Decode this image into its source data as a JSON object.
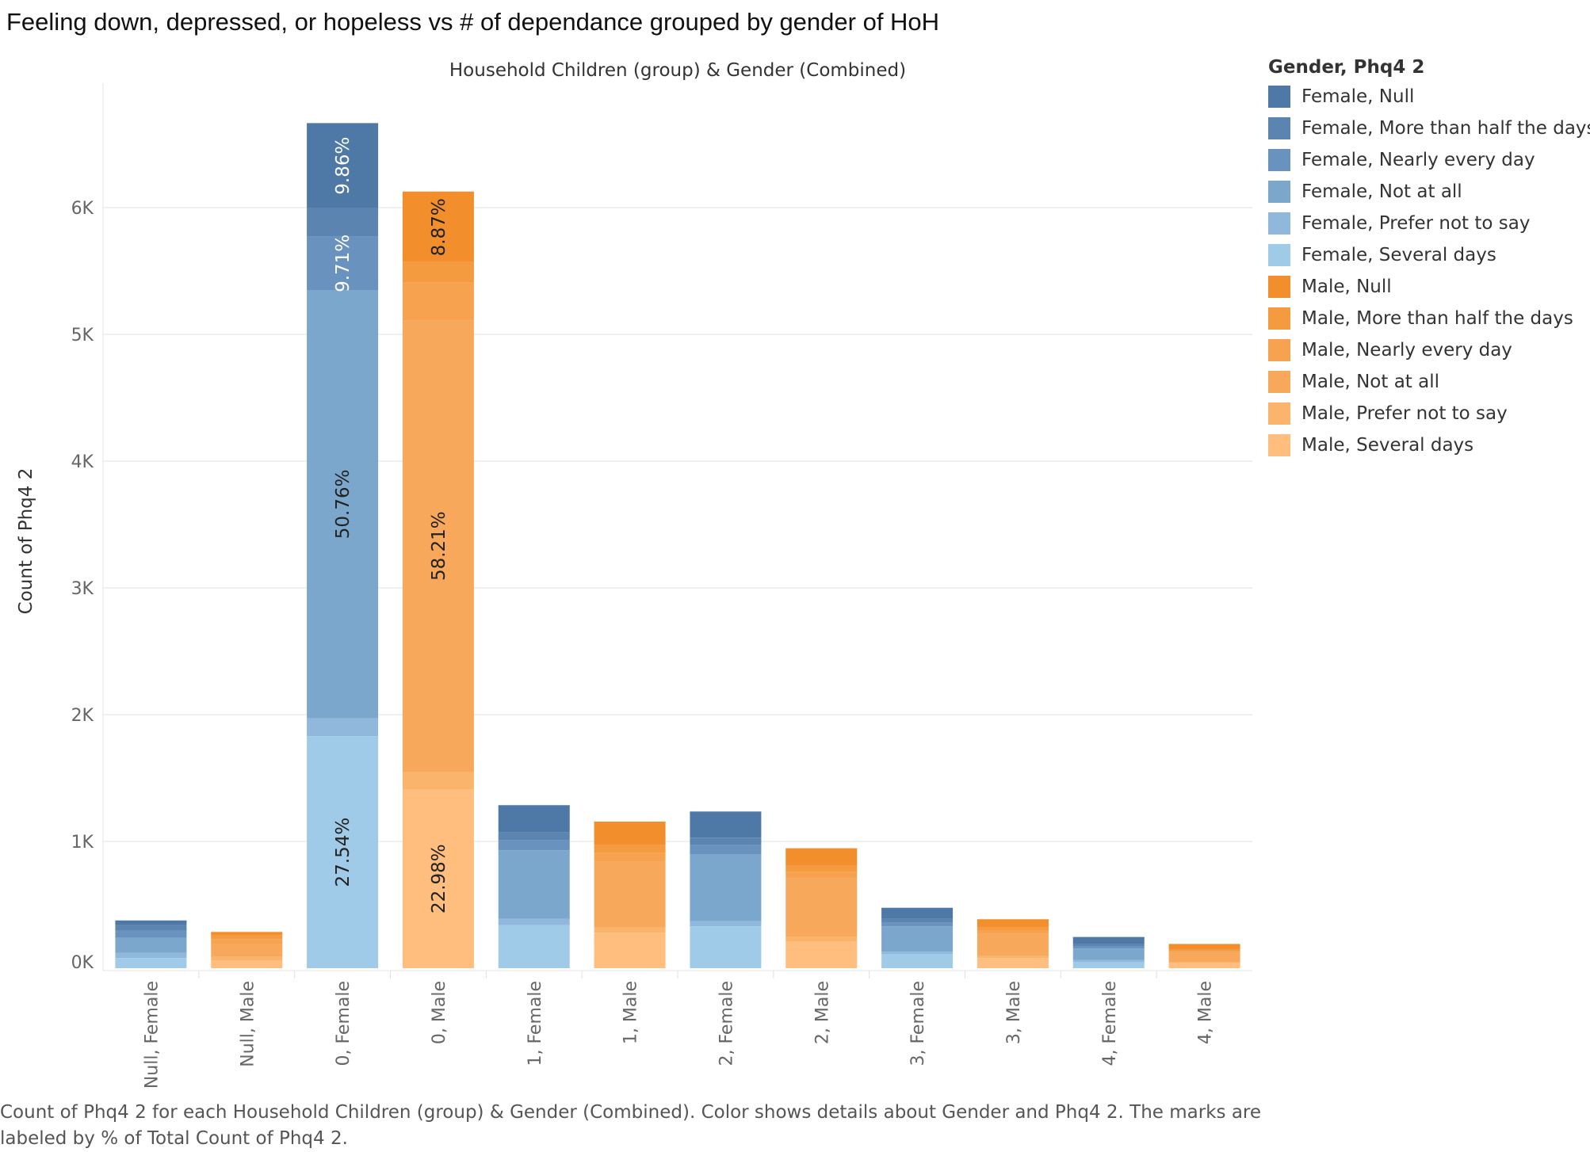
{
  "title": "Feeling down, depressed, or hopeless vs # of dependance grouped by gender of HoH",
  "caption": "Count of Phq4 2 for each Household Children (group) & Gender (Combined).  Color shows details about Gender and Phq4 2.  The marks are labeled by % of Total Count of Phq4 2.",
  "legend": {
    "title": "Gender, Phq4 2",
    "items": [
      {
        "label": "Female, Null",
        "color": "#4e79a7"
      },
      {
        "label": "Female, More than half the days",
        "color": "#5b84b1"
      },
      {
        "label": "Female, Nearly every day",
        "color": "#6a92bf"
      },
      {
        "label": "Female, Not at all",
        "color": "#7ba7cc"
      },
      {
        "label": "Female, Prefer not to say",
        "color": "#8fb8dc"
      },
      {
        "label": "Female, Several days",
        "color": "#a0cbe8"
      },
      {
        "label": "Male, Null",
        "color": "#f28e2b"
      },
      {
        "label": "Male, More than half the days",
        "color": "#f49a3f"
      },
      {
        "label": "Male, Nearly every day",
        "color": "#f6a24f"
      },
      {
        "label": "Male, Not at all",
        "color": "#f7a85b"
      },
      {
        "label": "Male, Prefer not to say",
        "color": "#fab46c"
      },
      {
        "label": "Male, Several days",
        "color": "#ffbe7d"
      }
    ]
  },
  "chart_data": {
    "type": "bar",
    "stacked": true,
    "title": "Feeling down, depressed, or hopeless vs # of dependance grouped by gender of HoH",
    "xlabel": "Household Children (group) & Gender (Combined)",
    "ylabel": "Count of Phq4 2",
    "ylim": [
      -100,
      7000
    ],
    "yticks": [
      {
        "value": 0,
        "label": "0K"
      },
      {
        "value": 1000,
        "label": "1K"
      },
      {
        "value": 2000,
        "label": "2K"
      },
      {
        "value": 3000,
        "label": "3K"
      },
      {
        "value": 4000,
        "label": "4K"
      },
      {
        "value": 5000,
        "label": "5K"
      },
      {
        "value": 6000,
        "label": "6K"
      }
    ],
    "grid": true,
    "legend_position": "right",
    "segment_order_bottom_to_top": [
      "Several days",
      "Prefer not to say",
      "Not at all",
      "Nearly every day",
      "More than half the days",
      "Null"
    ],
    "categories": [
      {
        "label": "Null, Female",
        "gender": "Female",
        "segments": [
          80,
          40,
          120,
          60,
          40,
          30
        ],
        "labels": [
          "",
          "",
          "",
          "",
          "",
          ""
        ]
      },
      {
        "label": "Null, Male",
        "gender": "Male",
        "segments": [
          60,
          30,
          100,
          40,
          30,
          20
        ],
        "labels": [
          "",
          "",
          "",
          "",
          "",
          ""
        ]
      },
      {
        "label": "0, Female",
        "gender": "Female",
        "segments": [
          1830,
          140,
          3380,
          420,
          230,
          660
        ],
        "labels": [
          "27.54%",
          "",
          "50.76%",
          "9.71%",
          "",
          "9.86%"
        ]
      },
      {
        "label": "0, Male",
        "gender": "Male",
        "segments": [
          1410,
          140,
          3560,
          300,
          160,
          550
        ],
        "labels": [
          "22.98%",
          "",
          "58.21%",
          "",
          "",
          "8.87%"
        ]
      },
      {
        "label": "1, Female",
        "gender": "Female",
        "segments": [
          340,
          50,
          540,
          80,
          60,
          210
        ],
        "labels": [
          "",
          "",
          "",
          "",
          "",
          ""
        ]
      },
      {
        "label": "1, Male",
        "gender": "Male",
        "segments": [
          280,
          40,
          520,
          70,
          60,
          180
        ],
        "labels": [
          "",
          "",
          "",
          "",
          "",
          ""
        ]
      },
      {
        "label": "2, Female",
        "gender": "Female",
        "segments": [
          330,
          40,
          530,
          70,
          60,
          200
        ],
        "labels": [
          "",
          "",
          "",
          "",
          "",
          ""
        ]
      },
      {
        "label": "2, Male",
        "gender": "Male",
        "segments": [
          210,
          40,
          460,
          50,
          50,
          130
        ],
        "labels": [
          "",
          "",
          "",
          "",
          "",
          ""
        ]
      },
      {
        "label": "3, Female",
        "gender": "Female",
        "segments": [
          110,
          20,
          200,
          30,
          30,
          80
        ],
        "labels": [
          "",
          "",
          "",
          "",
          "",
          ""
        ]
      },
      {
        "label": "3, Male",
        "gender": "Male",
        "segments": [
          80,
          20,
          170,
          30,
          20,
          60
        ],
        "labels": [
          "",
          "",
          "",
          "",
          "",
          ""
        ]
      },
      {
        "label": "4, Female",
        "gender": "Female",
        "segments": [
          50,
          15,
          90,
          20,
          15,
          50
        ],
        "labels": [
          "",
          "",
          "",
          "",
          "",
          ""
        ]
      },
      {
        "label": "4, Male",
        "gender": "Male",
        "segments": [
          40,
          10,
          70,
          15,
          10,
          40
        ],
        "labels": [
          "",
          "",
          "",
          "",
          "",
          ""
        ]
      }
    ]
  }
}
